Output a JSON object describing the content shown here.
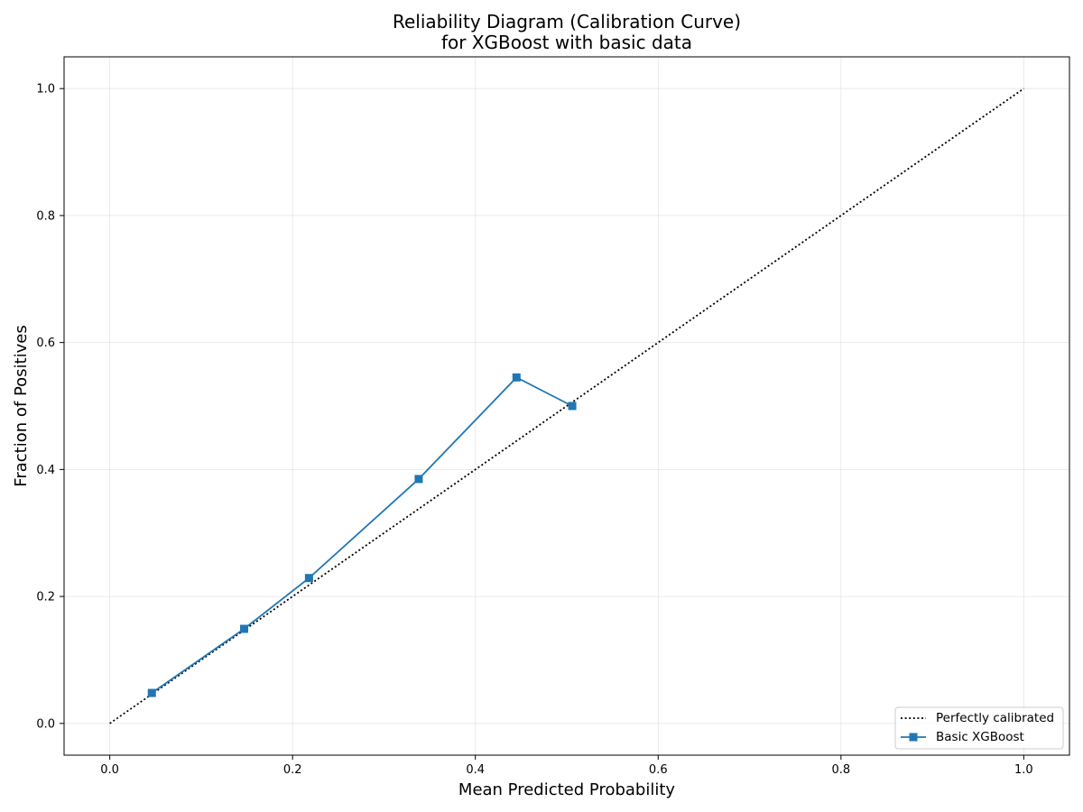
{
  "chart_data": {
    "type": "line",
    "title_line1": "Reliability Diagram (Calibration Curve)",
    "title_line2": "for XGBoost with basic data",
    "xlabel": "Mean Predicted Probability",
    "ylabel": "Fraction of Positives",
    "xlim": [
      -0.05,
      1.05
    ],
    "ylim": [
      -0.05,
      1.05
    ],
    "xticks": [
      0.0,
      0.2,
      0.4,
      0.6,
      0.8,
      1.0
    ],
    "xtick_labels": [
      "0.0",
      "0.2",
      "0.4",
      "0.6",
      "0.8",
      "1.0"
    ],
    "yticks": [
      0.0,
      0.2,
      0.4,
      0.6,
      0.8,
      1.0
    ],
    "ytick_labels": [
      "0.0",
      "0.2",
      "0.4",
      "0.6",
      "0.8",
      "1.0"
    ],
    "grid": true,
    "legend_position": "bottom-right",
    "series": [
      {
        "name": "Perfectly calibrated",
        "style": "dotted",
        "marker": "none",
        "color": "#000000",
        "x": [
          0.0,
          1.0
        ],
        "y": [
          0.0,
          1.0
        ]
      },
      {
        "name": "Basic XGBoost",
        "style": "solid",
        "marker": "square",
        "color": "#1f77b4",
        "x": [
          0.046,
          0.147,
          0.218,
          0.338,
          0.445,
          0.506
        ],
        "y": [
          0.048,
          0.149,
          0.229,
          0.385,
          0.545,
          0.5
        ]
      }
    ]
  }
}
